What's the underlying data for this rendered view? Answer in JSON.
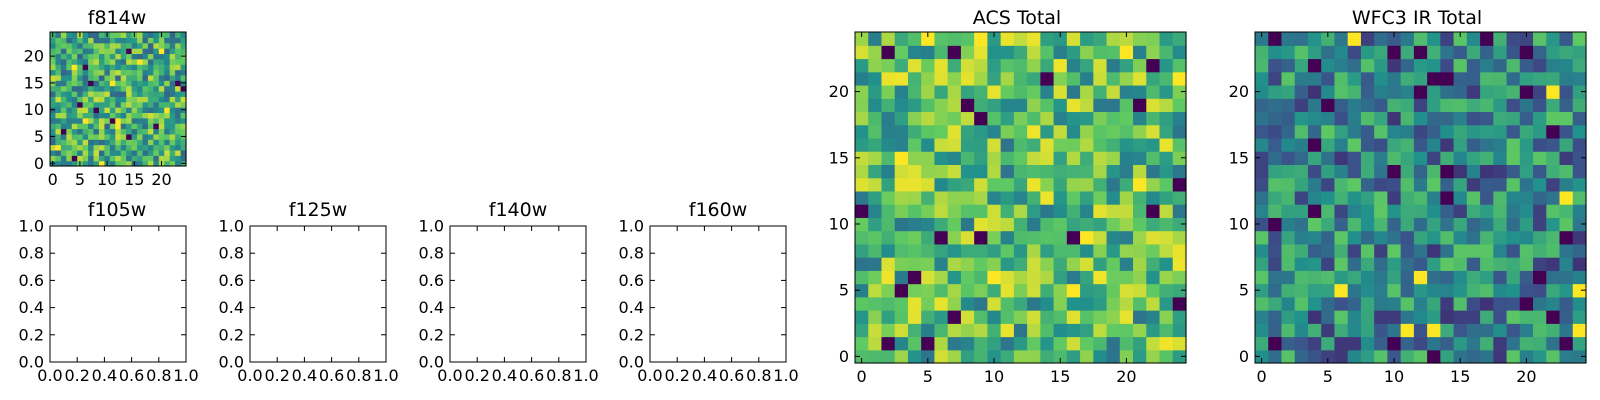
{
  "figure": {
    "background": "#ffffff",
    "colormap": [
      "#440154",
      "#3b528b",
      "#21918c",
      "#5ec962",
      "#fde725"
    ]
  },
  "chart_data": [
    {
      "type": "heatmap",
      "title": "f814w",
      "grid": false,
      "shape": [
        25,
        25
      ],
      "xlim": [
        -0.5,
        24.5
      ],
      "ylim": [
        -0.5,
        24.5
      ],
      "xticks": [
        "0",
        "5",
        "10",
        "15",
        "20"
      ],
      "yticks": [
        "0",
        "5",
        "10",
        "15",
        "20"
      ],
      "values_note": "pixel values not readable"
    },
    {
      "type": "empty",
      "title": "f105w",
      "xlim": [
        0,
        1
      ],
      "ylim": [
        0,
        1
      ],
      "xticks": [
        "0.0",
        "0.2",
        "0.4",
        "0.6",
        "0.8",
        "1.0"
      ],
      "yticks": [
        "0.0",
        "0.2",
        "0.4",
        "0.6",
        "0.8",
        "1.0"
      ]
    },
    {
      "type": "empty",
      "title": "f125w",
      "xlim": [
        0,
        1
      ],
      "ylim": [
        0,
        1
      ],
      "xticks": [
        "0.0",
        "0.2",
        "0.4",
        "0.6",
        "0.8",
        "1.0"
      ],
      "yticks": [
        "0.0",
        "0.2",
        "0.4",
        "0.6",
        "0.8",
        "1.0"
      ]
    },
    {
      "type": "empty",
      "title": "f140w",
      "xlim": [
        0,
        1
      ],
      "ylim": [
        0,
        1
      ],
      "xticks": [
        "0.0",
        "0.2",
        "0.4",
        "0.6",
        "0.8",
        "1.0"
      ],
      "yticks": [
        "0.0",
        "0.2",
        "0.4",
        "0.6",
        "0.8",
        "1.0"
      ]
    },
    {
      "type": "empty",
      "title": "f160w",
      "xlim": [
        0,
        1
      ],
      "ylim": [
        0,
        1
      ],
      "xticks": [
        "0.0",
        "0.2",
        "0.4",
        "0.6",
        "0.8",
        "1.0"
      ],
      "yticks": [
        "0.0",
        "0.2",
        "0.4",
        "0.6",
        "0.8",
        "1.0"
      ]
    },
    {
      "type": "heatmap",
      "title": "ACS Total",
      "grid": false,
      "shape": [
        25,
        25
      ],
      "xlim": [
        -0.5,
        24.5
      ],
      "ylim": [
        -0.5,
        24.5
      ],
      "xticks": [
        "0",
        "5",
        "10",
        "15",
        "20"
      ],
      "yticks": [
        "0",
        "5",
        "10",
        "15",
        "20"
      ],
      "values_note": "pixel values not readable"
    },
    {
      "type": "heatmap",
      "title": "WFC3 IR Total",
      "grid": false,
      "shape": [
        25,
        25
      ],
      "xlim": [
        -0.5,
        24.5
      ],
      "ylim": [
        -0.5,
        24.5
      ],
      "xticks": [
        "0",
        "5",
        "10",
        "15",
        "20"
      ],
      "yticks": [
        "0",
        "5",
        "10",
        "15",
        "20"
      ],
      "values_note": "pixel values not readable"
    }
  ]
}
